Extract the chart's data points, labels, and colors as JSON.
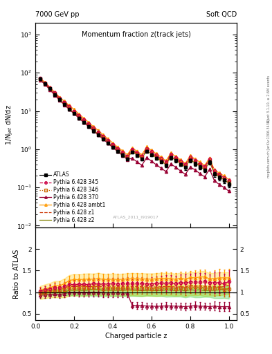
{
  "title": "Momentum fraction z(track jets)",
  "header_left": "7000 GeV pp",
  "header_right": "Soft QCD",
  "ylabel_main": "1/N$_{jet}$ dN/dz",
  "ylabel_ratio": "Ratio to ATLAS",
  "xlabel": "Charged particle z",
  "right_label_top": "Rivet 3.1.10, ≥ 2.6M events",
  "right_label_bot": "mcplots.cern.ch [arXiv:1306.3436]",
  "watermark": "ATLAS_2011_I919017",
  "ylim_main": [
    0.009,
    2000
  ],
  "ylim_ratio": [
    0.35,
    2.5
  ],
  "xlim": [
    0.0,
    1.04
  ],
  "atlas_x": [
    0.025,
    0.05,
    0.075,
    0.1,
    0.125,
    0.15,
    0.175,
    0.2,
    0.225,
    0.25,
    0.275,
    0.3,
    0.325,
    0.35,
    0.375,
    0.4,
    0.425,
    0.45,
    0.475,
    0.5,
    0.525,
    0.55,
    0.575,
    0.6,
    0.625,
    0.65,
    0.675,
    0.7,
    0.725,
    0.75,
    0.775,
    0.8,
    0.825,
    0.85,
    0.875,
    0.9,
    0.925,
    0.95,
    0.975,
    1.0
  ],
  "atlas_y": [
    70,
    52,
    38,
    27,
    20,
    15,
    11,
    8.5,
    6.5,
    5.0,
    3.9,
    3.0,
    2.35,
    1.85,
    1.45,
    1.12,
    0.88,
    0.7,
    0.55,
    0.83,
    0.68,
    0.55,
    0.88,
    0.72,
    0.58,
    0.47,
    0.38,
    0.6,
    0.5,
    0.4,
    0.33,
    0.5,
    0.42,
    0.34,
    0.28,
    0.45,
    0.22,
    0.18,
    0.15,
    0.12
  ],
  "atlas_yerr": [
    4,
    3,
    2.5,
    1.8,
    1.4,
    1.0,
    0.8,
    0.6,
    0.5,
    0.4,
    0.3,
    0.25,
    0.2,
    0.16,
    0.13,
    0.1,
    0.08,
    0.06,
    0.05,
    0.07,
    0.06,
    0.05,
    0.07,
    0.06,
    0.05,
    0.04,
    0.04,
    0.06,
    0.05,
    0.04,
    0.04,
    0.05,
    0.05,
    0.04,
    0.03,
    0.05,
    0.03,
    0.025,
    0.02,
    0.018
  ],
  "py345_y": [
    72,
    55,
    41,
    30,
    22,
    17,
    13,
    10,
    7.7,
    5.9,
    4.6,
    3.6,
    2.8,
    2.2,
    1.73,
    1.34,
    1.05,
    0.84,
    0.66,
    1.0,
    0.82,
    0.66,
    1.05,
    0.86,
    0.7,
    0.57,
    0.46,
    0.73,
    0.6,
    0.49,
    0.4,
    0.62,
    0.52,
    0.42,
    0.35,
    0.55,
    0.27,
    0.22,
    0.18,
    0.15
  ],
  "py345_yerr": [
    3,
    2.5,
    2,
    1.5,
    1.1,
    0.85,
    0.65,
    0.5,
    0.4,
    0.35,
    0.28,
    0.22,
    0.18,
    0.14,
    0.11,
    0.09,
    0.07,
    0.06,
    0.05,
    0.08,
    0.07,
    0.06,
    0.09,
    0.08,
    0.07,
    0.06,
    0.05,
    0.08,
    0.07,
    0.06,
    0.05,
    0.07,
    0.06,
    0.05,
    0.04,
    0.06,
    0.04,
    0.03,
    0.025,
    0.02
  ],
  "py345_color": "#cc0044",
  "py346_y": [
    69,
    52,
    39,
    28,
    21,
    16,
    12,
    9.3,
    7.1,
    5.5,
    4.3,
    3.3,
    2.6,
    2.0,
    1.58,
    1.22,
    0.96,
    0.76,
    0.6,
    0.91,
    0.74,
    0.6,
    0.96,
    0.78,
    0.63,
    0.51,
    0.42,
    0.66,
    0.54,
    0.44,
    0.36,
    0.56,
    0.47,
    0.38,
    0.31,
    0.49,
    0.24,
    0.2,
    0.16,
    0.13
  ],
  "py346_yerr": [
    3,
    2.5,
    2,
    1.5,
    1.1,
    0.85,
    0.65,
    0.5,
    0.4,
    0.32,
    0.25,
    0.2,
    0.16,
    0.13,
    0.1,
    0.08,
    0.065,
    0.055,
    0.044,
    0.07,
    0.058,
    0.047,
    0.075,
    0.062,
    0.05,
    0.041,
    0.033,
    0.052,
    0.043,
    0.035,
    0.028,
    0.044,
    0.037,
    0.03,
    0.024,
    0.038,
    0.019,
    0.015,
    0.013,
    0.01
  ],
  "py346_color": "#cc6600",
  "py370_y": [
    65,
    49,
    36,
    26,
    19,
    14.5,
    11,
    8.5,
    6.5,
    5.0,
    3.9,
    3.0,
    2.35,
    1.83,
    1.43,
    1.11,
    0.87,
    0.69,
    0.54,
    0.58,
    0.47,
    0.38,
    0.6,
    0.49,
    0.39,
    0.32,
    0.26,
    0.41,
    0.34,
    0.27,
    0.22,
    0.34,
    0.29,
    0.23,
    0.19,
    0.3,
    0.15,
    0.12,
    0.1,
    0.08
  ],
  "py370_yerr": [
    3,
    2.3,
    1.8,
    1.3,
    1.0,
    0.75,
    0.6,
    0.45,
    0.35,
    0.28,
    0.22,
    0.17,
    0.13,
    0.1,
    0.08,
    0.063,
    0.05,
    0.039,
    0.031,
    0.033,
    0.027,
    0.022,
    0.035,
    0.028,
    0.022,
    0.018,
    0.015,
    0.023,
    0.019,
    0.015,
    0.013,
    0.02,
    0.017,
    0.013,
    0.011,
    0.017,
    0.008,
    0.007,
    0.006,
    0.005
  ],
  "py370_color": "#990033",
  "pyambt1_y": [
    73,
    56,
    42,
    31,
    23,
    18,
    14,
    11,
    8.4,
    6.5,
    5.1,
    3.9,
    3.1,
    2.4,
    1.88,
    1.46,
    1.14,
    0.91,
    0.72,
    1.09,
    0.89,
    0.72,
    1.15,
    0.94,
    0.76,
    0.62,
    0.5,
    0.79,
    0.65,
    0.53,
    0.43,
    0.67,
    0.56,
    0.46,
    0.38,
    0.59,
    0.29,
    0.24,
    0.2,
    0.16
  ],
  "pyambt1_yerr": [
    3,
    2.5,
    2,
    1.5,
    1.1,
    0.9,
    0.7,
    0.55,
    0.42,
    0.33,
    0.26,
    0.2,
    0.16,
    0.12,
    0.1,
    0.077,
    0.06,
    0.048,
    0.038,
    0.058,
    0.047,
    0.038,
    0.061,
    0.05,
    0.04,
    0.033,
    0.026,
    0.042,
    0.034,
    0.028,
    0.023,
    0.036,
    0.03,
    0.024,
    0.02,
    0.031,
    0.015,
    0.013,
    0.01,
    0.009
  ],
  "pyambt1_color": "#ff9900",
  "pyz1_y": [
    70,
    53,
    40,
    29,
    21,
    16.5,
    12.5,
    9.6,
    7.4,
    5.7,
    4.4,
    3.4,
    2.67,
    2.08,
    1.63,
    1.26,
    0.99,
    0.79,
    0.62,
    0.94,
    0.77,
    0.62,
    0.99,
    0.81,
    0.65,
    0.53,
    0.43,
    0.68,
    0.56,
    0.45,
    0.37,
    0.58,
    0.48,
    0.39,
    0.32,
    0.51,
    0.25,
    0.2,
    0.17,
    0.14
  ],
  "pyz1_color": "#cc3300",
  "pyz2_y": [
    67,
    51,
    38,
    27,
    20,
    15,
    11.5,
    8.9,
    6.8,
    5.2,
    4.1,
    3.2,
    2.48,
    1.94,
    1.52,
    1.17,
    0.92,
    0.73,
    0.58,
    0.87,
    0.71,
    0.57,
    0.92,
    0.75,
    0.6,
    0.49,
    0.4,
    0.63,
    0.52,
    0.42,
    0.34,
    0.53,
    0.44,
    0.36,
    0.29,
    0.47,
    0.23,
    0.19,
    0.16,
    0.13
  ],
  "pyz2_color": "#808000",
  "legend_entries": [
    "ATLAS",
    "Pythia 6.428 345",
    "Pythia 6.428 346",
    "Pythia 6.428 370",
    "Pythia 6.428 ambt1",
    "Pythia 6.428 z1",
    "Pythia 6.428 z2"
  ]
}
